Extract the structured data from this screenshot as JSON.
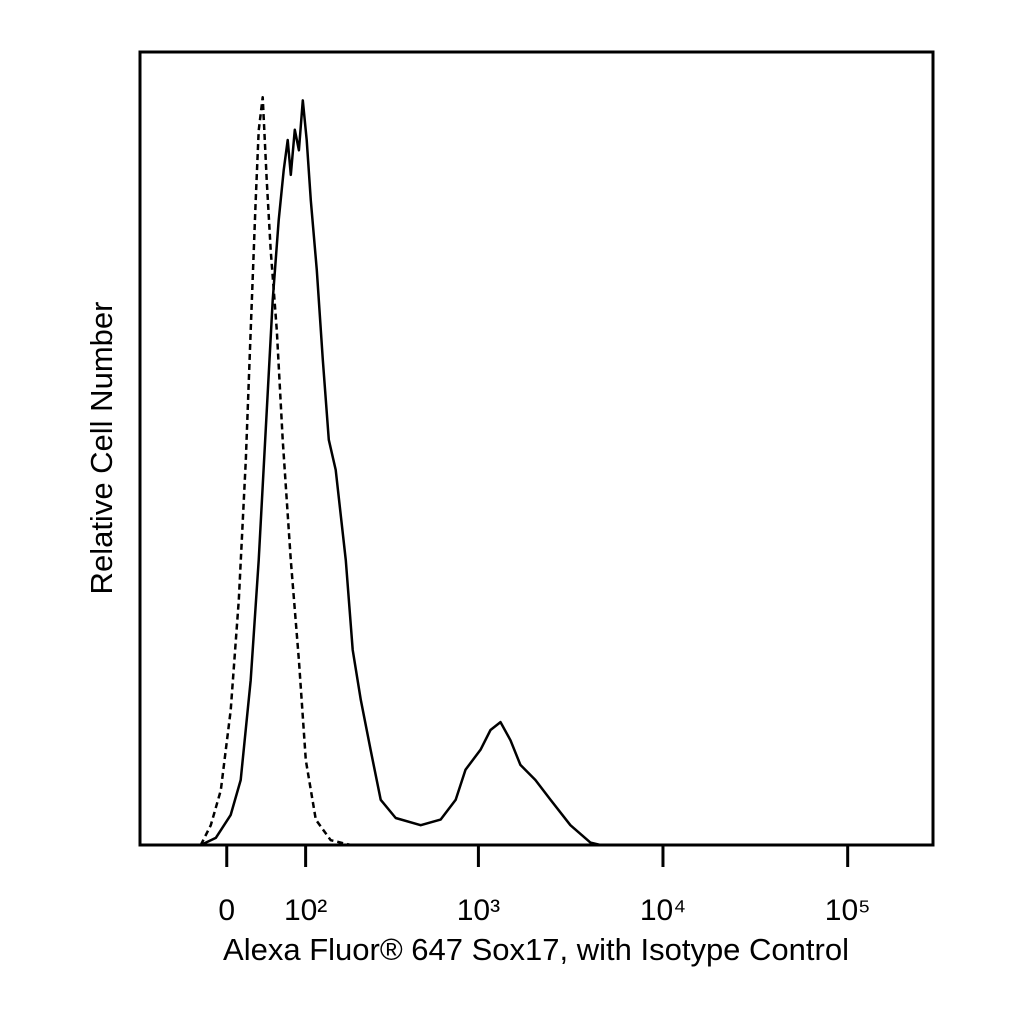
{
  "chart_data": {
    "type": "line",
    "x_label": "Alexa Fluor® 647 Sox17, with Isotype Control",
    "y_label": "Relative Cell Number",
    "xscale": "asinh",
    "xlim": [
      -110,
      262144
    ],
    "ylim": [
      0,
      100
    ],
    "xticks": [
      0,
      {
        "value": 100,
        "label": "10²"
      },
      {
        "value": 1000,
        "label": "10³"
      },
      {
        "value": 10000,
        "label": "10⁴"
      },
      {
        "value": 100000,
        "label": "10⁵"
      }
    ],
    "series": [
      {
        "color": "#000000",
        "dashed": false,
        "x": [
          -28.7,
          -11.9,
          4.3,
          15.2,
          26.4,
          35.6,
          43.9,
          52.6,
          60.4,
          67.1,
          72.7,
          77.0,
          83.0,
          89.2,
          95.4,
          101.8,
          108.7,
          119.5,
          130.8,
          143,
          158,
          182,
          200,
          223,
          254,
          290,
          352,
          484,
          622,
          752,
          851,
          1027,
          1163,
          1318,
          1494,
          1691,
          2038,
          2460,
          3155,
          4047,
          4585,
          262144
        ],
        "values": [
          0,
          0.9,
          3.8,
          8.2,
          20.8,
          35.9,
          52.3,
          68.7,
          78.8,
          85.1,
          88.9,
          84.5,
          90.2,
          87.6,
          93.9,
          88.9,
          81.3,
          72.5,
          61.2,
          51.1,
          47.3,
          35.9,
          24.6,
          18.3,
          12.0,
          5.7,
          3.4,
          2.5,
          3.2,
          5.7,
          9.5,
          12.0,
          14.5,
          15.5,
          13.2,
          10.1,
          8.2,
          5.7,
          2.5,
          0.3,
          0,
          0
        ]
      },
      {
        "color": "#000000",
        "dashed": true,
        "x": [
          -28.7,
          -17.4,
          -6.5,
          4.3,
          13.1,
          20.8,
          26.4,
          32.1,
          35.6,
          40.3,
          45.1,
          50.1,
          57.8,
          65.7,
          77.0,
          89.2,
          100.2,
          117.6,
          147,
          195,
          262144
        ],
        "values": [
          0,
          2.5,
          6.9,
          17.0,
          30.9,
          48.5,
          64.9,
          81.3,
          90.1,
          94.3,
          83.9,
          75.0,
          64.9,
          51.1,
          35.9,
          23.3,
          10.7,
          3.2,
          0.6,
          0,
          0
        ]
      }
    ]
  }
}
